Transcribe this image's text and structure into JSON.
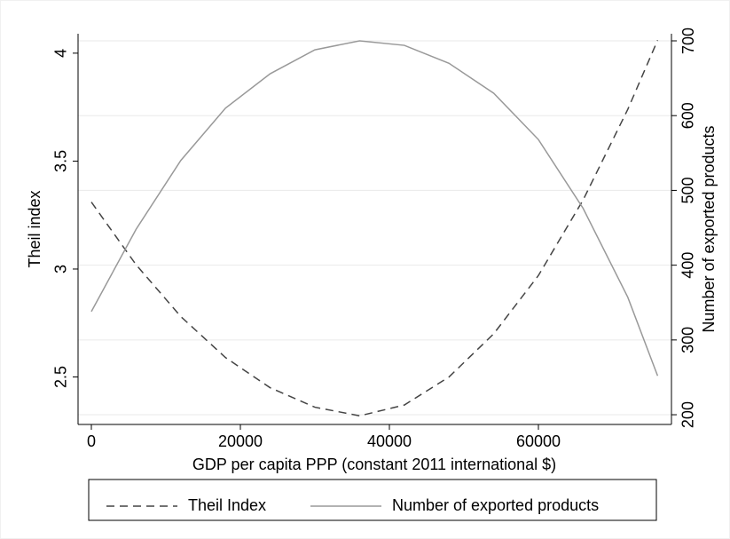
{
  "chart_data": {
    "type": "line",
    "x_label": "GDP per capita PPP (constant 2011 international $)",
    "y_label": "Theil index",
    "y2_label": "Number of exported products",
    "x": [
      0,
      6000,
      12000,
      18000,
      24000,
      30000,
      36000,
      42000,
      48000,
      54000,
      60000,
      66000,
      72000,
      76000
    ],
    "series": [
      {
        "name": "Theil Index",
        "color": "#444444",
        "dash": true,
        "values": [
          3.31,
          3.02,
          2.78,
          2.59,
          2.45,
          2.36,
          2.32,
          2.37,
          2.5,
          2.7,
          2.97,
          3.32,
          3.74,
          4.06
        ]
      },
      {
        "name": "Number of exported products",
        "color": "#999999",
        "dash": false,
        "axis": "y2",
        "values": [
          338,
          448,
          540,
          610,
          656,
          688,
          700,
          694,
          670,
          630,
          568,
          476,
          357,
          252
        ]
      }
    ],
    "xlim": [
      -1786,
      77857
    ],
    "xticks": [
      0,
      20000,
      40000,
      60000
    ],
    "ylim": [
      2.28,
      4.09
    ],
    "yticks": [
      2.5,
      3,
      3.5,
      4
    ],
    "y2lim": [
      187,
      709.5
    ],
    "y2ticks": [
      200,
      300,
      400,
      500,
      600,
      700
    ],
    "grid": "y2",
    "legend": "bottom"
  }
}
